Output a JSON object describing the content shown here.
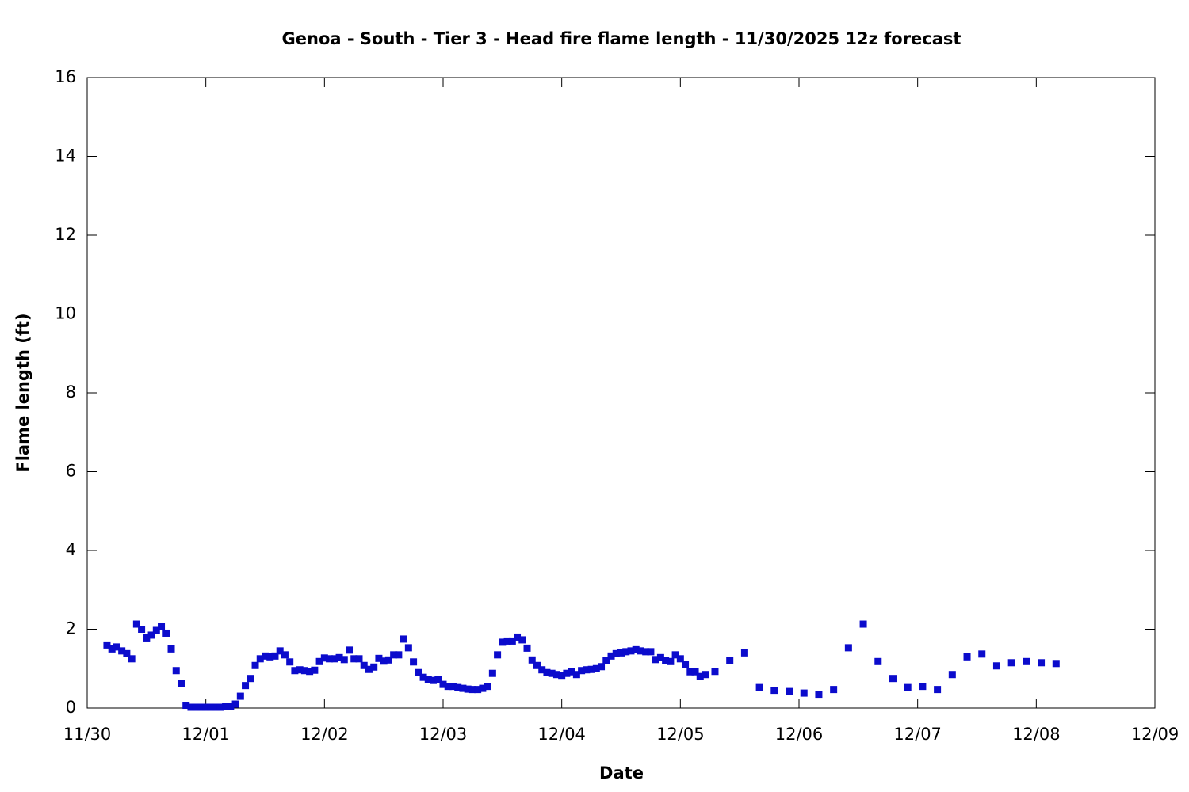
{
  "chart_data": {
    "type": "scatter",
    "title": "Genoa - South - Tier 3 - Head fire flame length - 11/30/2025 12z forecast",
    "xlabel": "Date",
    "ylabel": "Flame length (ft)",
    "xlim": [
      0,
      216
    ],
    "xticks": [
      {
        "value": 0,
        "label": "11/30"
      },
      {
        "value": 24,
        "label": "12/01"
      },
      {
        "value": 48,
        "label": "12/02"
      },
      {
        "value": 72,
        "label": "12/03"
      },
      {
        "value": 96,
        "label": "12/04"
      },
      {
        "value": 120,
        "label": "12/05"
      },
      {
        "value": 144,
        "label": "12/06"
      },
      {
        "value": 168,
        "label": "12/07"
      },
      {
        "value": 192,
        "label": "12/08"
      },
      {
        "value": 216,
        "label": "12/09"
      }
    ],
    "ylim": [
      0,
      16
    ],
    "yticks": [
      0,
      2,
      4,
      6,
      8,
      10,
      12,
      14,
      16
    ],
    "color": "#0b0bcc",
    "x": [
      4,
      5,
      6,
      7,
      8,
      9,
      10,
      11,
      12,
      13,
      14,
      15,
      16,
      17,
      18,
      19,
      20,
      21,
      22,
      23,
      24,
      25,
      26,
      27,
      28,
      29,
      30,
      31,
      32,
      33,
      34,
      35,
      36,
      37,
      38,
      39,
      40,
      41,
      42,
      43,
      44,
      45,
      46,
      47,
      48,
      49,
      50,
      51,
      52,
      53,
      54,
      55,
      56,
      57,
      58,
      59,
      60,
      61,
      62,
      63,
      64,
      65,
      66,
      67,
      68,
      69,
      70,
      71,
      72,
      73,
      74,
      75,
      76,
      77,
      78,
      79,
      80,
      81,
      82,
      83,
      84,
      85,
      86,
      87,
      88,
      89,
      90,
      91,
      92,
      93,
      94,
      95,
      96,
      97,
      98,
      99,
      100,
      101,
      102,
      103,
      104,
      105,
      106,
      107,
      108,
      109,
      110,
      111,
      112,
      113,
      114,
      115,
      116,
      117,
      118,
      119,
      120,
      121,
      122,
      123,
      124,
      125,
      127,
      130,
      133,
      136,
      139,
      142,
      145,
      148,
      151,
      154,
      157,
      160,
      163,
      166,
      169,
      172,
      175,
      178,
      181,
      184,
      187,
      190,
      193,
      196
    ],
    "values": [
      1.6,
      1.5,
      1.55,
      1.45,
      1.38,
      1.25,
      2.13,
      2.0,
      1.78,
      1.85,
      1.97,
      2.07,
      1.9,
      1.5,
      0.95,
      0.62,
      0.07,
      0.02,
      0.02,
      0.02,
      0.02,
      0.02,
      0.02,
      0.02,
      0.03,
      0.05,
      0.1,
      0.3,
      0.57,
      0.75,
      1.08,
      1.25,
      1.32,
      1.3,
      1.32,
      1.45,
      1.35,
      1.17,
      0.95,
      0.97,
      0.95,
      0.93,
      0.96,
      1.18,
      1.27,
      1.25,
      1.25,
      1.28,
      1.23,
      1.47,
      1.25,
      1.25,
      1.08,
      0.98,
      1.04,
      1.26,
      1.19,
      1.22,
      1.35,
      1.35,
      1.75,
      1.53,
      1.17,
      0.9,
      0.78,
      0.72,
      0.7,
      0.72,
      0.6,
      0.55,
      0.55,
      0.52,
      0.5,
      0.48,
      0.47,
      0.47,
      0.5,
      0.55,
      0.88,
      1.35,
      1.67,
      1.7,
      1.7,
      1.8,
      1.73,
      1.52,
      1.22,
      1.08,
      0.97,
      0.9,
      0.88,
      0.85,
      0.83,
      0.88,
      0.92,
      0.85,
      0.95,
      0.97,
      0.98,
      1.0,
      1.05,
      1.2,
      1.32,
      1.38,
      1.4,
      1.43,
      1.45,
      1.48,
      1.45,
      1.43,
      1.43,
      1.23,
      1.28,
      1.2,
      1.18,
      1.35,
      1.25,
      1.1,
      0.92,
      0.92,
      0.8,
      0.85,
      0.93,
      1.2,
      1.4,
      0.52,
      0.45,
      0.42,
      0.38,
      0.35,
      0.47,
      1.53,
      2.13,
      1.18,
      0.75,
      0.52,
      0.55,
      0.47,
      0.85,
      1.3,
      1.37,
      1.07,
      1.15,
      1.18,
      1.15,
      1.13
    ]
  }
}
